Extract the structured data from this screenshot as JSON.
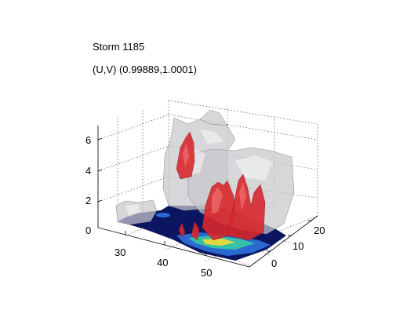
{
  "figure": {
    "title": "Storm 1185",
    "subtitle": "(U,V) (0.99889,1.0001)"
  },
  "axes": {
    "z_ticks": [
      "0",
      "2",
      "4",
      "6"
    ],
    "x_ticks": [
      "30",
      "40",
      "50"
    ],
    "y_ticks": [
      "0",
      "10",
      "20"
    ],
    "grid": true
  },
  "colors": {
    "isosurface_outer": "#c8c8cc",
    "isosurface_inner": "#d8282c",
    "base_dark": "#0c1660",
    "base_mid": "#2a6ad0",
    "base_light": "#36c0a8"
  }
}
